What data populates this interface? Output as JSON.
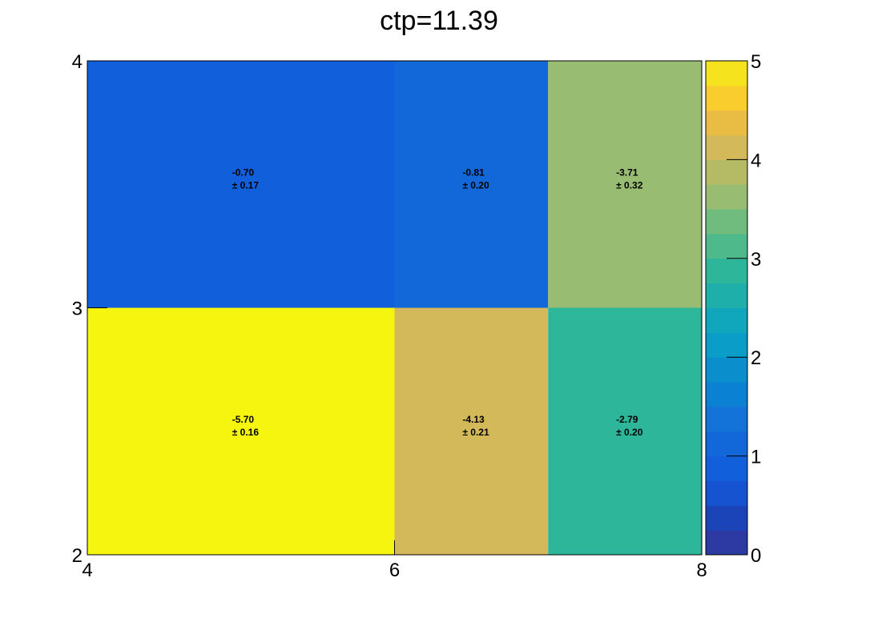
{
  "chart_data": {
    "type": "heatmap",
    "title": "ctp=11.39",
    "xlabel": "",
    "ylabel": "",
    "x_edges": [
      4,
      6,
      7,
      8
    ],
    "y_edges": [
      2,
      3,
      4
    ],
    "xlim": [
      4,
      8
    ],
    "ylim": [
      2,
      4
    ],
    "x_ticks": [
      4,
      6,
      8
    ],
    "y_ticks": [
      2,
      3,
      4
    ],
    "x_tick_labels": [
      "4",
      "6",
      "8"
    ],
    "y_tick_labels": [
      "2",
      "3",
      "4"
    ],
    "zlim": [
      0,
      5
    ],
    "z_ticks": [
      0,
      1,
      2,
      3,
      4,
      5
    ],
    "z_tick_labels": [
      "0",
      "1",
      "2",
      "3",
      "4",
      "5"
    ],
    "colorbar_levels": 20,
    "grid": false,
    "cells": [
      {
        "x": [
          4,
          6
        ],
        "y": [
          2,
          3
        ],
        "label": "-5.70",
        "error": "± 0.16",
        "z": 5.0
      },
      {
        "x": [
          6,
          7
        ],
        "y": [
          2,
          3
        ],
        "label": "-4.13",
        "error": "± 0.21",
        "z": 4.2
      },
      {
        "x": [
          7,
          8
        ],
        "y": [
          2,
          3
        ],
        "label": "-2.79",
        "error": "± 0.20",
        "z": 2.9
      },
      {
        "x": [
          4,
          6
        ],
        "y": [
          3,
          4
        ],
        "label": "-0.70",
        "error": "± 0.17",
        "z": 0.85
      },
      {
        "x": [
          6,
          7
        ],
        "y": [
          3,
          4
        ],
        "label": "-0.81",
        "error": "± 0.20",
        "z": 1.1
      },
      {
        "x": [
          7,
          8
        ],
        "y": [
          3,
          4
        ],
        "label": "-3.71",
        "error": "± 0.32",
        "z": 3.7
      }
    ],
    "palette": [
      "#2d3aa3",
      "#1c44b9",
      "#1553d0",
      "#125fdb",
      "#1368d9",
      "#1373d8",
      "#0b81d3",
      "#0a8fcc",
      "#099dc7",
      "#10a7bd",
      "#1eafab",
      "#2eb69a",
      "#4eb98a",
      "#70bc7e",
      "#97bc72",
      "#b5bb65",
      "#d3b959",
      "#e9bc43",
      "#f8cd2d",
      "#f5e31d"
    ],
    "max_color": "#f5f50f"
  }
}
